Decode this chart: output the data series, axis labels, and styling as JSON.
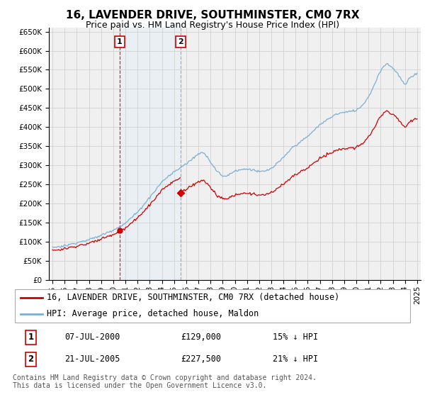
{
  "title": "16, LAVENDER DRIVE, SOUTHMINSTER, CM0 7RX",
  "subtitle": "Price paid vs. HM Land Registry's House Price Index (HPI)",
  "ylim": [
    0,
    660000
  ],
  "yticks": [
    0,
    50000,
    100000,
    150000,
    200000,
    250000,
    300000,
    350000,
    400000,
    450000,
    500000,
    550000,
    600000,
    650000
  ],
  "xlim_start": 1994.7,
  "xlim_end": 2025.3,
  "legend_line1": "16, LAVENDER DRIVE, SOUTHMINSTER, CM0 7RX (detached house)",
  "legend_line2": "HPI: Average price, detached house, Maldon",
  "footer": "Contains HM Land Registry data © Crown copyright and database right 2024.\nThis data is licensed under the Open Government Licence v3.0.",
  "transaction1_label": "1",
  "transaction1_date": "07-JUL-2000",
  "transaction1_price": "£129,000",
  "transaction1_hpi": "15% ↓ HPI",
  "transaction1_x": 2000.52,
  "transaction1_y": 129000,
  "transaction2_label": "2",
  "transaction2_date": "21-JUL-2005",
  "transaction2_price": "£227,500",
  "transaction2_hpi": "21% ↓ HPI",
  "transaction2_x": 2005.55,
  "transaction2_y": 227500,
  "line_color_red": "#cc0000",
  "line_color_blue": "#7aafd4",
  "vline1_color": "#cc0000",
  "vline2_color": "#9999bb",
  "grid_color": "#cccccc",
  "background_color": "#ffffff",
  "plot_bg_color": "#f0f0f0",
  "shade_color": "#ddeeff",
  "title_fontsize": 11,
  "subtitle_fontsize": 9,
  "tick_fontsize": 7.5,
  "legend_fontsize": 8.5,
  "footer_fontsize": 7
}
